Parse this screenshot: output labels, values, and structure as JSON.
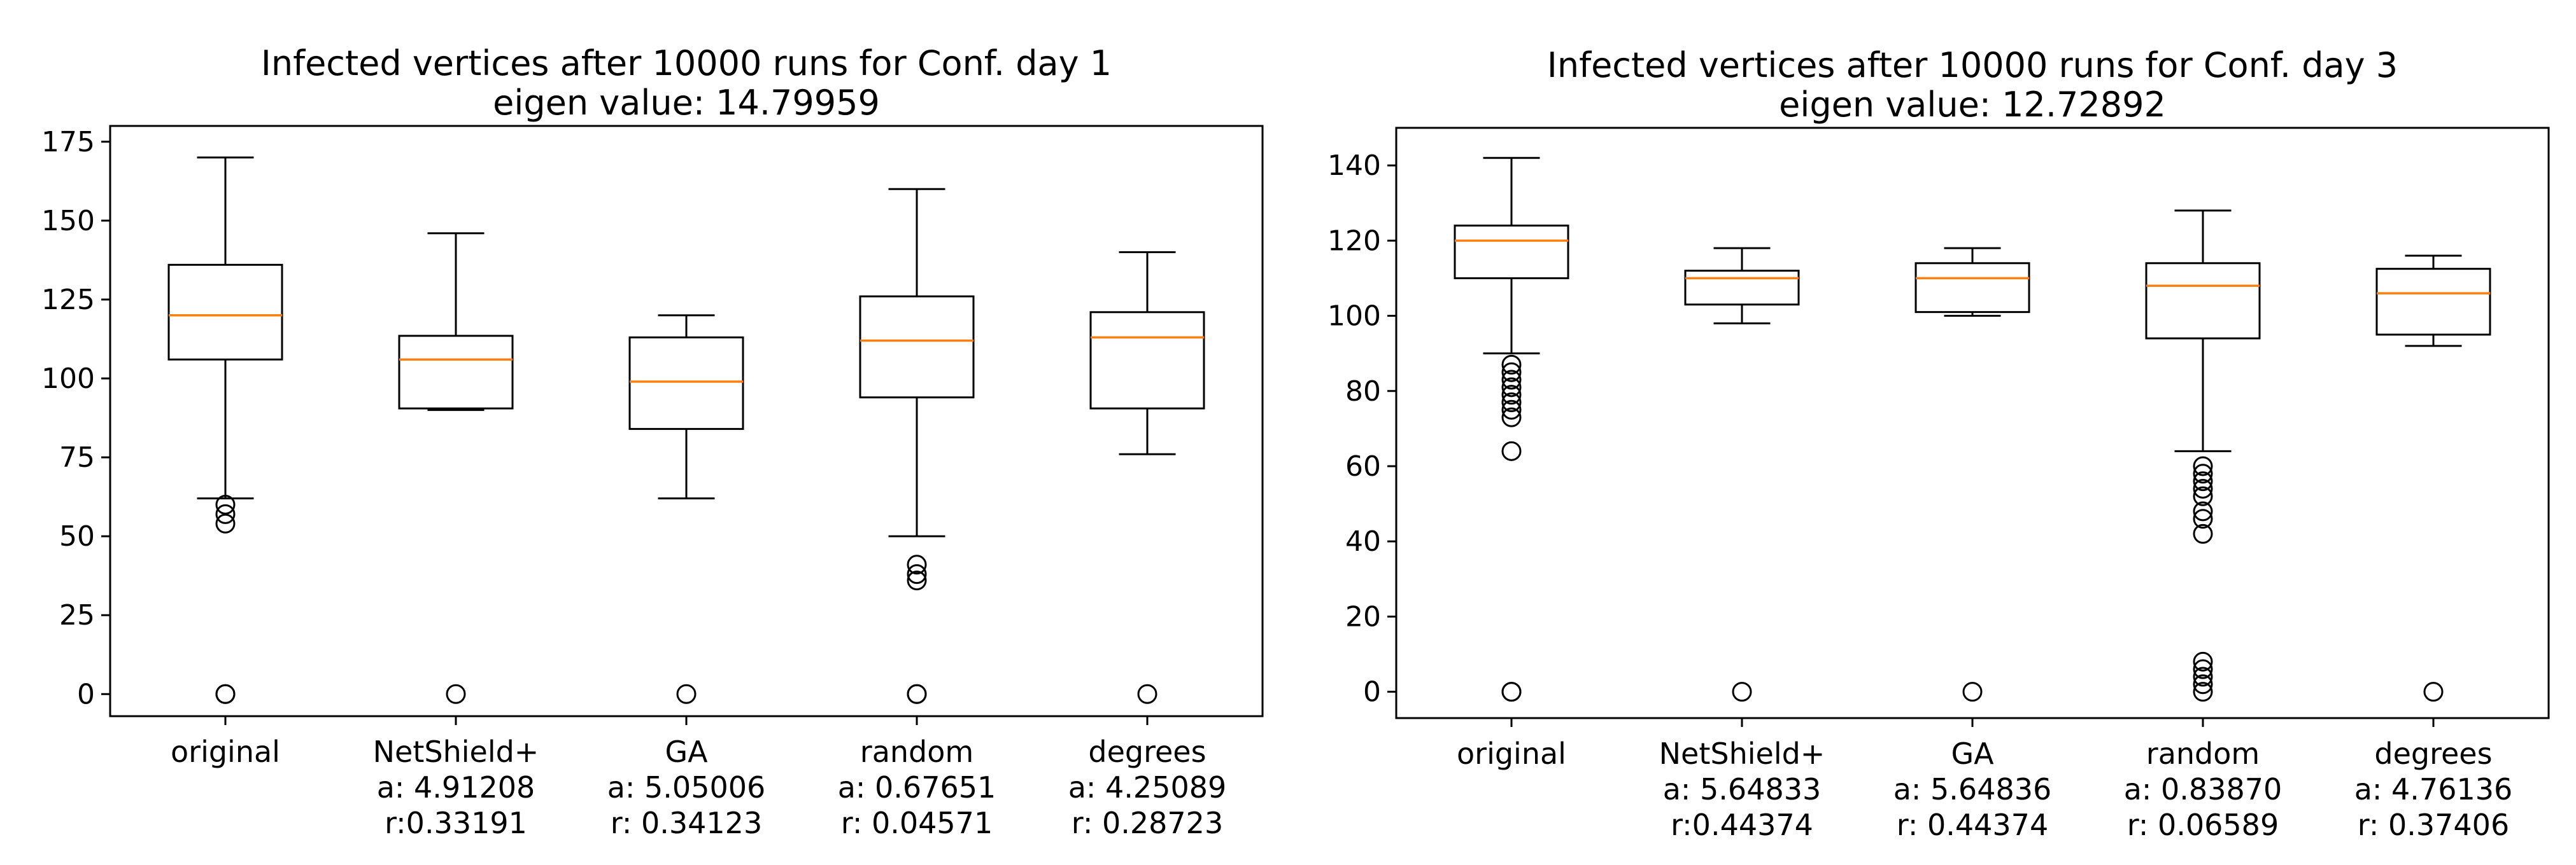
{
  "chart_data": [
    {
      "type": "box",
      "title": "Infected vertices after 10000 runs for Conf. day 1",
      "subtitle": "eigen value: 14.79959",
      "xlabel": "",
      "ylabel": "",
      "ylim": [
        -7,
        180
      ],
      "yticks": [
        0,
        25,
        50,
        75,
        100,
        125,
        150,
        175
      ],
      "categories": [
        [
          "original"
        ],
        [
          "NetShield+",
          "a: 4.91208",
          "r:0.33191"
        ],
        [
          "GA",
          "a: 5.05006",
          "r: 0.34123"
        ],
        [
          "random",
          "a: 0.67651",
          "r: 0.04571"
        ],
        [
          "degrees",
          "a: 4.25089",
          "r: 0.28723"
        ]
      ],
      "boxes": [
        {
          "whisker_low": 62,
          "q1": 106,
          "median": 120,
          "q3": 136,
          "whisker_high": 170,
          "outliers": [
            60,
            57,
            54,
            0,
            0
          ]
        },
        {
          "whisker_low": 90,
          "q1": 90.5,
          "median": 106,
          "q3": 113.5,
          "whisker_high": 146,
          "outliers": [
            0
          ]
        },
        {
          "whisker_low": 62,
          "q1": 84,
          "median": 99,
          "q3": 113,
          "whisker_high": 120,
          "outliers": [
            0
          ]
        },
        {
          "whisker_low": 50,
          "q1": 94,
          "median": 112,
          "q3": 126,
          "whisker_high": 160,
          "outliers": [
            41,
            38,
            36,
            0,
            0
          ]
        },
        {
          "whisker_low": 76,
          "q1": 90.5,
          "median": 113,
          "q3": 121,
          "whisker_high": 140,
          "outliers": [
            0
          ]
        }
      ],
      "colors": {
        "box": "#000000",
        "median": "#ff7f0e"
      },
      "grid": false
    },
    {
      "type": "box",
      "title": "Infected vertices after 10000 runs for Conf. day 3",
      "subtitle": "eigen value: 12.72892",
      "xlabel": "",
      "ylabel": "",
      "ylim": [
        -7,
        150
      ],
      "yticks": [
        0,
        20,
        40,
        60,
        80,
        100,
        120,
        140
      ],
      "categories": [
        [
          "original"
        ],
        [
          "NetShield+",
          "a: 5.64833",
          "r:0.44374"
        ],
        [
          "GA",
          "a: 5.64836",
          "r: 0.44374"
        ],
        [
          "random",
          "a: 0.83870",
          "r: 0.06589"
        ],
        [
          "degrees",
          "a: 4.76136",
          "r: 0.37406"
        ]
      ],
      "boxes": [
        {
          "whisker_low": 90,
          "q1": 110,
          "median": 120,
          "q3": 124,
          "whisker_high": 142,
          "outliers": [
            87,
            85,
            83,
            81,
            79,
            77,
            75,
            73,
            64,
            0,
            0
          ]
        },
        {
          "whisker_low": 98,
          "q1": 103,
          "median": 110,
          "q3": 112,
          "whisker_high": 118,
          "outliers": [
            0
          ]
        },
        {
          "whisker_low": 100,
          "q1": 101,
          "median": 110,
          "q3": 114,
          "whisker_high": 118,
          "outliers": [
            0
          ]
        },
        {
          "whisker_low": 64,
          "q1": 94,
          "median": 108,
          "q3": 114,
          "whisker_high": 128,
          "outliers": [
            60,
            58,
            56,
            54,
            52,
            48,
            46,
            42,
            8,
            6,
            4,
            2,
            0
          ]
        },
        {
          "whisker_low": 92,
          "q1": 95,
          "median": 106,
          "q3": 112.5,
          "whisker_high": 116,
          "outliers": [
            0
          ]
        }
      ],
      "colors": {
        "box": "#000000",
        "median": "#ff7f0e"
      },
      "grid": false
    }
  ]
}
